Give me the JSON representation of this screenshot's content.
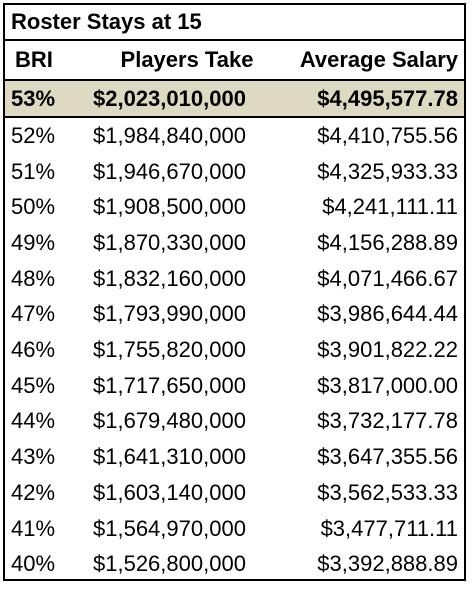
{
  "chart_data": {
    "type": "table",
    "title": "Roster Stays at 15",
    "columns": [
      "BRI",
      "Players Take",
      "Average Salary"
    ],
    "rows": [
      {
        "bri": "53%",
        "players_take": "$2,023,010,000",
        "average_salary": "$4,495,577.78",
        "highlight": true
      },
      {
        "bri": "52%",
        "players_take": "$1,984,840,000",
        "average_salary": "$4,410,755.56"
      },
      {
        "bri": "51%",
        "players_take": "$1,946,670,000",
        "average_salary": "$4,325,933.33"
      },
      {
        "bri": "50%",
        "players_take": "$1,908,500,000",
        "average_salary": "$4,241,111.11"
      },
      {
        "bri": "49%",
        "players_take": "$1,870,330,000",
        "average_salary": "$4,156,288.89"
      },
      {
        "bri": "48%",
        "players_take": "$1,832,160,000",
        "average_salary": "$4,071,466.67"
      },
      {
        "bri": "47%",
        "players_take": "$1,793,990,000",
        "average_salary": "$3,986,644.44"
      },
      {
        "bri": "46%",
        "players_take": "$1,755,820,000",
        "average_salary": "$3,901,822.22"
      },
      {
        "bri": "45%",
        "players_take": "$1,717,650,000",
        "average_salary": "$3,817,000.00"
      },
      {
        "bri": "44%",
        "players_take": "$1,679,480,000",
        "average_salary": "$3,732,177.78"
      },
      {
        "bri": "43%",
        "players_take": "$1,641,310,000",
        "average_salary": "$3,647,355.56"
      },
      {
        "bri": "42%",
        "players_take": "$1,603,140,000",
        "average_salary": "$3,562,533.33"
      },
      {
        "bri": "41%",
        "players_take": "$1,564,970,000",
        "average_salary": "$3,477,711.11"
      },
      {
        "bri": "40%",
        "players_take": "$1,526,800,000",
        "average_salary": "$3,392,888.89"
      }
    ],
    "highlight_color": "#ddd9c3"
  }
}
